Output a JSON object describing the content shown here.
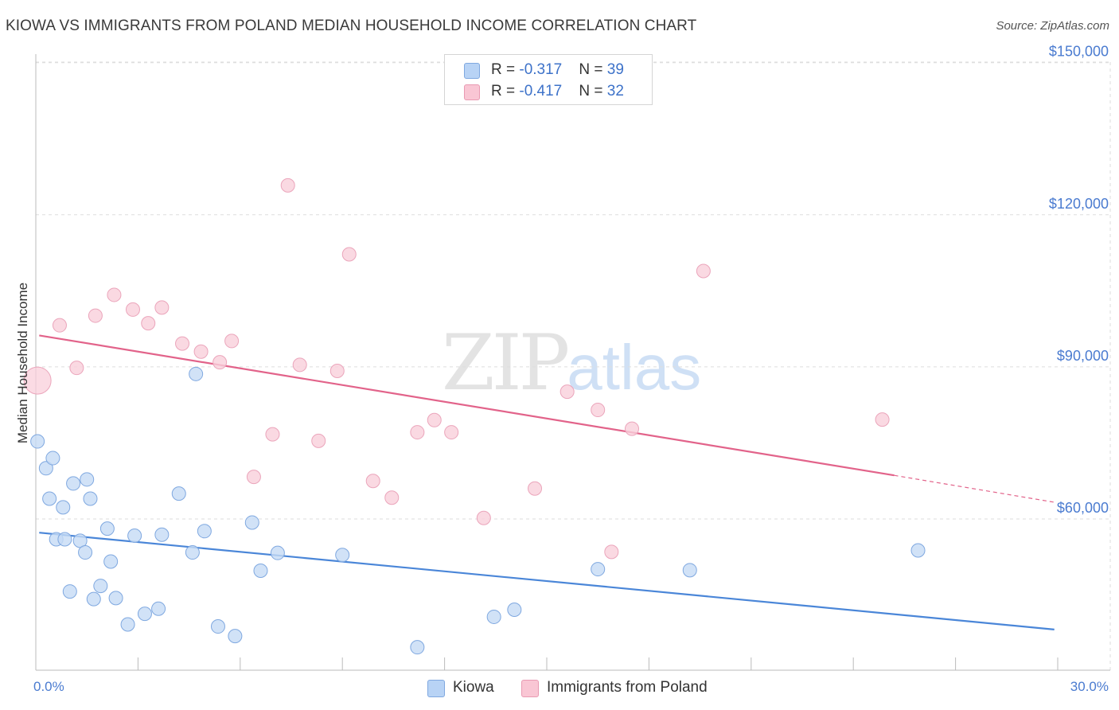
{
  "title": "KIOWA VS IMMIGRANTS FROM POLAND MEDIAN HOUSEHOLD INCOME CORRELATION CHART",
  "source": "Source: ZipAtlas.com",
  "watermark": {
    "zip": "ZIP",
    "atlas": "atlas"
  },
  "stats": [
    {
      "r_label": "R = ",
      "r_value": "-0.317",
      "n_label": "N = ",
      "n_value": "39",
      "color": "#b8d3f5"
    },
    {
      "r_label": "R = ",
      "r_value": "-0.417",
      "n_label": "N = ",
      "n_value": "32",
      "color": "#f9c6d4"
    }
  ],
  "legend": [
    {
      "label": "Kiowa",
      "color": "#b8d3f5"
    },
    {
      "label": "Immigrants from Poland",
      "color": "#f9c6d4"
    }
  ],
  "chart_data": {
    "type": "scatter",
    "title": "KIOWA VS IMMIGRANTS FROM POLAND MEDIAN HOUSEHOLD INCOME CORRELATION CHART",
    "xlabel": "",
    "ylabel": "Median Household Income",
    "xlim": [
      0,
      30
    ],
    "ylim": [
      34000,
      152000
    ],
    "x_tick_labels": [
      "0.0%",
      "30.0%"
    ],
    "y_ticks": [
      60000,
      90000,
      120000,
      150000
    ],
    "y_tick_labels": [
      "$60,000",
      "$90,000",
      "$120,000",
      "$150,000"
    ],
    "grid": true,
    "series": [
      {
        "name": "Kiowa",
        "color": "#4a86d8",
        "fill": "#c6dbf5",
        "trend": {
          "x": [
            0.1,
            29.9
          ],
          "y": [
            57300,
            38200
          ]
        },
        "points": [
          [
            0.05,
            75300
          ],
          [
            0.3,
            70000
          ],
          [
            0.5,
            72000
          ],
          [
            0.4,
            64000
          ],
          [
            0.8,
            62300
          ],
          [
            1.1,
            67000
          ],
          [
            1.5,
            67800
          ],
          [
            1.6,
            64000
          ],
          [
            0.6,
            56000
          ],
          [
            0.85,
            56000
          ],
          [
            1.3,
            55700
          ],
          [
            1.45,
            53400
          ],
          [
            2.1,
            58100
          ],
          [
            2.2,
            51600
          ],
          [
            1.0,
            45700
          ],
          [
            1.7,
            44200
          ],
          [
            1.9,
            46800
          ],
          [
            2.35,
            44400
          ],
          [
            2.7,
            39200
          ],
          [
            2.9,
            56700
          ],
          [
            3.2,
            41300
          ],
          [
            3.6,
            42300
          ],
          [
            3.7,
            56900
          ],
          [
            4.2,
            65000
          ],
          [
            4.6,
            53400
          ],
          [
            4.7,
            88600
          ],
          [
            4.95,
            57600
          ],
          [
            5.35,
            38800
          ],
          [
            5.85,
            36900
          ],
          [
            6.35,
            59300
          ],
          [
            6.6,
            49800
          ],
          [
            7.1,
            53300
          ],
          [
            9.0,
            52900
          ],
          [
            11.2,
            34700
          ],
          [
            13.45,
            40700
          ],
          [
            14.05,
            42100
          ],
          [
            16.5,
            50100
          ],
          [
            19.2,
            49900
          ],
          [
            25.9,
            53800
          ]
        ]
      },
      {
        "name": "Immigrants from Poland",
        "color": "#e2638a",
        "fill": "#f9cfdb",
        "trend": {
          "x": [
            0.1,
            25.2
          ],
          "y": [
            96200,
            68600
          ]
        },
        "trend_dashed": {
          "x": [
            25.2,
            29.9
          ],
          "y": [
            68600,
            63300
          ]
        },
        "points": [
          [
            0.05,
            87300
          ],
          [
            0.7,
            98200
          ],
          [
            1.2,
            89800
          ],
          [
            1.75,
            100100
          ],
          [
            2.3,
            104200
          ],
          [
            2.85,
            101300
          ],
          [
            3.3,
            98600
          ],
          [
            3.7,
            101700
          ],
          [
            4.3,
            94600
          ],
          [
            4.85,
            93000
          ],
          [
            5.4,
            90900
          ],
          [
            5.75,
            95100
          ],
          [
            6.4,
            68300
          ],
          [
            6.95,
            76700
          ],
          [
            7.4,
            125800
          ],
          [
            7.75,
            90400
          ],
          [
            8.3,
            75400
          ],
          [
            8.85,
            89200
          ],
          [
            9.2,
            112200
          ],
          [
            9.9,
            67500
          ],
          [
            10.45,
            64200
          ],
          [
            11.2,
            77100
          ],
          [
            11.7,
            79500
          ],
          [
            12.2,
            77100
          ],
          [
            13.15,
            60200
          ],
          [
            14.65,
            66000
          ],
          [
            15.6,
            85100
          ],
          [
            16.5,
            81500
          ],
          [
            16.9,
            53500
          ],
          [
            17.5,
            77800
          ],
          [
            19.6,
            108900
          ],
          [
            24.85,
            79600
          ]
        ]
      }
    ]
  }
}
